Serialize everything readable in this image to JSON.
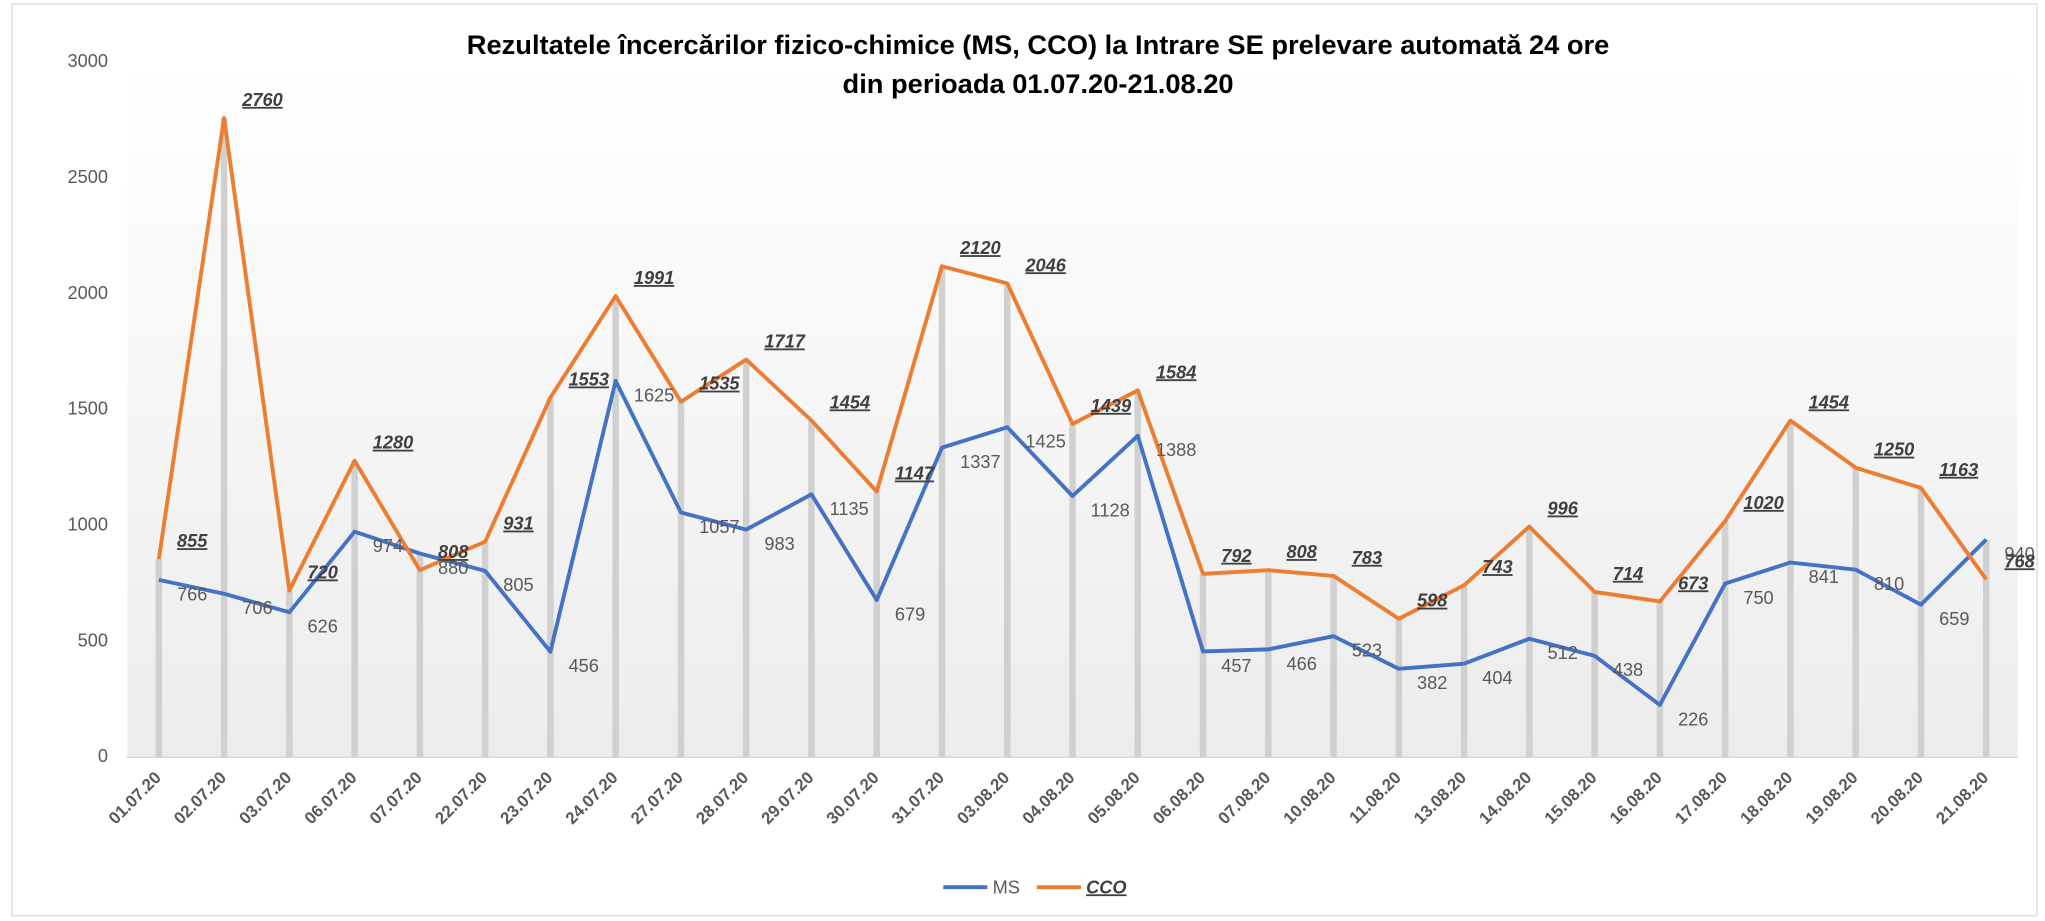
{
  "chart_data": {
    "type": "line",
    "title": [
      "Rezultatele încercărilor fizico-chimice (MS, CCO) la Intrare SE prelevare automată 24 ore",
      "din perioada 01.07.20-21.08.20"
    ],
    "categories": [
      "01.07.20",
      "02.07.20",
      "03.07.20",
      "06.07.20",
      "07.07.20",
      "22.07.20",
      "23.07.20",
      "24.07.20",
      "27.07.20",
      "28.07.20",
      "29.07.20",
      "30.07.20",
      "31.07.20",
      "03.08.20",
      "04.08.20",
      "05.08.20",
      "06.08.20",
      "07.08.20",
      "10.08.20",
      "11.08.20",
      "13.08.20",
      "14.08.20",
      "15.08.20",
      "16.08.20",
      "17.08.20",
      "18.08.20",
      "19.08.20",
      "20.08.20",
      "21.08.20"
    ],
    "series": [
      {
        "name": "MS",
        "color": "#4472c4",
        "values": [
          766,
          706,
          626,
          974,
          880,
          805,
          456,
          1625,
          1057,
          983,
          1135,
          679,
          1337,
          1425,
          1128,
          1388,
          457,
          466,
          523,
          382,
          404,
          512,
          438,
          226,
          750,
          841,
          810,
          659,
          940
        ]
      },
      {
        "name": "CCO",
        "color": "#ed7d31",
        "values": [
          855,
          2760,
          720,
          1280,
          808,
          931,
          1553,
          1991,
          1535,
          1717,
          1454,
          1147,
          2120,
          2046,
          1439,
          1584,
          792,
          808,
          783,
          598,
          743,
          996,
          714,
          673,
          1020,
          1454,
          1250,
          1163,
          768
        ]
      }
    ],
    "ylim": [
      0,
      3000
    ],
    "yticks": [
      0,
      500,
      1000,
      1500,
      2000,
      2500,
      3000
    ],
    "legend": "bottom"
  }
}
